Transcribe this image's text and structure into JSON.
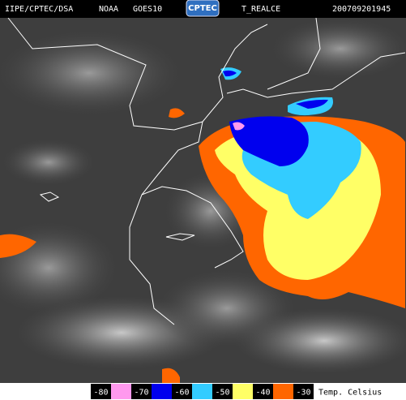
{
  "header": {
    "source": "IIPE/CPTEC/DSA",
    "agency": "NOAA",
    "satellite": "GOES10",
    "logo": "CPTEC",
    "product": "T_REALCE",
    "timestamp": "200709201945"
  },
  "legend": {
    "labels": [
      -80,
      -70,
      -60,
      -50,
      -40,
      -30
    ],
    "colors": [
      "#ff99ee",
      "#0000ee",
      "#33ccff",
      "#ffff66",
      "#ff6600"
    ],
    "unit": "Temp. Celsius"
  }
}
